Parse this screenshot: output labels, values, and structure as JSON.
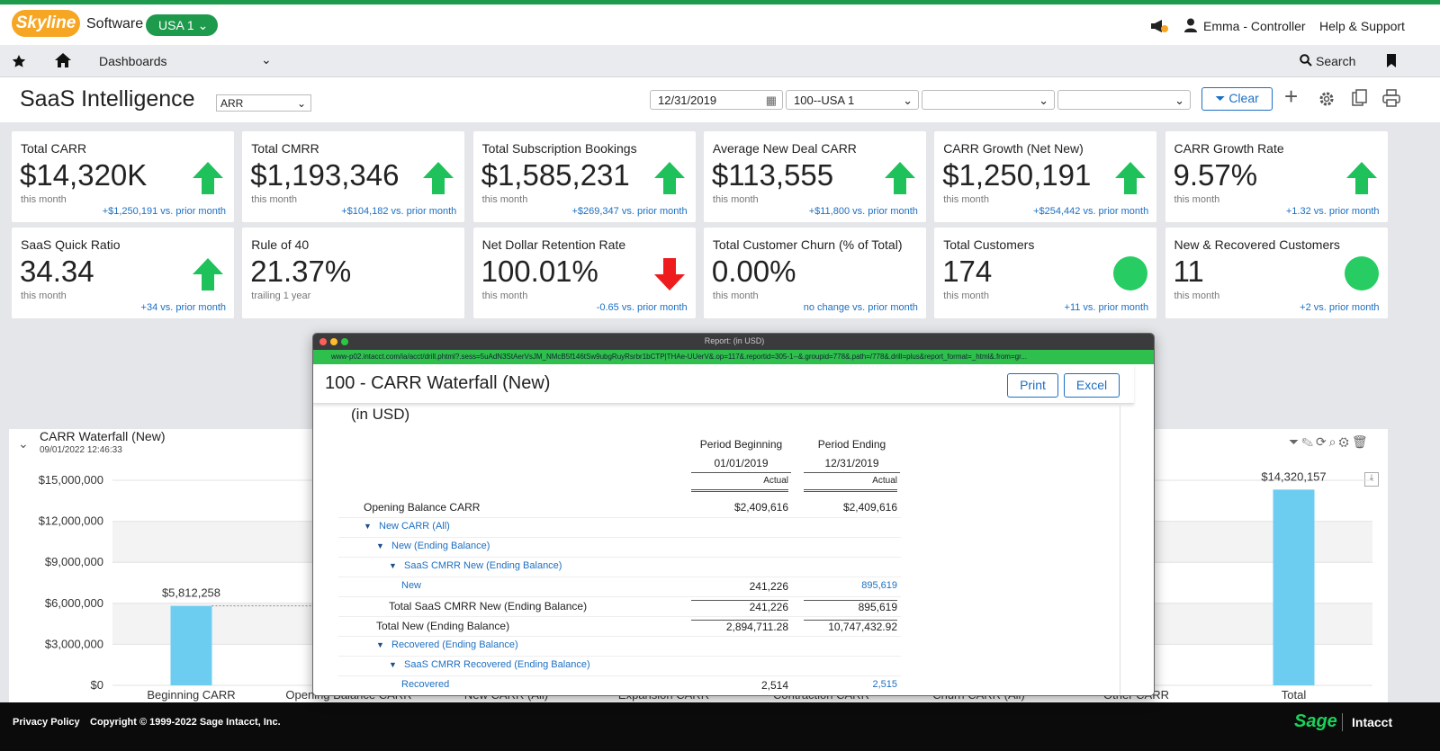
{
  "header": {
    "logo": "Skyline",
    "brand": "Software",
    "entity": "USA 1",
    "user": "Emma - Controller",
    "help": "Help & Support"
  },
  "nav": {
    "dashboards": "Dashboards",
    "search": "Search"
  },
  "toolbar": {
    "title": "SaaS Intelligence",
    "view": "ARR",
    "date": "12/31/2019",
    "location": "100--USA 1",
    "clear": "Clear"
  },
  "kpis": [
    {
      "label": "Total CARR",
      "value": "$14,320K",
      "period": "this month",
      "delta": "+$1,250,191 vs. prior month",
      "trend": "up"
    },
    {
      "label": "Total CMRR",
      "value": "$1,193,346",
      "period": "this month",
      "delta": "+$104,182 vs. prior month",
      "trend": "up"
    },
    {
      "label": "Total Subscription Bookings",
      "value": "$1,585,231",
      "period": "this month",
      "delta": "+$269,347 vs. prior month",
      "trend": "up"
    },
    {
      "label": "Average New Deal CARR",
      "value": "$113,555",
      "period": "this month",
      "delta": "+$11,800 vs. prior month",
      "trend": "up"
    },
    {
      "label": "CARR Growth (Net New)",
      "value": "$1,250,191",
      "period": "this month",
      "delta": "+$254,442 vs. prior month",
      "trend": "up"
    },
    {
      "label": "CARR Growth Rate",
      "value": "9.57%",
      "period": "this month",
      "delta": "+1.32 vs. prior month",
      "trend": "up"
    },
    {
      "label": "SaaS Quick Ratio",
      "value": "34.34",
      "period": "this month",
      "delta": "+34 vs. prior month",
      "trend": "up"
    },
    {
      "label": "Rule of 40",
      "value": "21.37%",
      "period": "trailing 1 year"
    },
    {
      "label": "Net Dollar Retention Rate",
      "value": "100.01%",
      "period": "this month",
      "delta": "-0.65 vs. prior month",
      "trend": "down"
    },
    {
      "label": "Total Customer Churn (% of Total)",
      "value": "0.00%",
      "period": "this month",
      "delta": "no change vs. prior month"
    },
    {
      "label": "Total Customers",
      "value": "174",
      "period": "this month",
      "delta": "+11 vs. prior month",
      "trend": "dot"
    },
    {
      "label": "New & Recovered Customers",
      "value": "11",
      "period": "this month",
      "delta": "+2 vs. prior month",
      "trend": "dot"
    }
  ],
  "waterfall": {
    "title": "CARR Waterfall (New)",
    "timestamp": "09/01/2022 12:46:33",
    "categories": [
      "Beginning CARR",
      "Opening Balance CARR",
      "New CARR (All)",
      "Expansion CARR",
      "Contraction CARR",
      "Churn CARR (All)",
      "Other CARR",
      "Total"
    ],
    "values": [
      5812258,
      null,
      null,
      null,
      null,
      null,
      null,
      14320157
    ],
    "value_labels": [
      "$5,812,258",
      null,
      null,
      null,
      null,
      null,
      null,
      "$14,320,157"
    ],
    "color": "#6dcdf1",
    "ylim": [
      0,
      15000000
    ],
    "yticks": [
      {
        "value": 0,
        "label": "$0"
      },
      {
        "value": 3000000,
        "label": "$3,000,000"
      },
      {
        "value": 6000000,
        "label": "$6,000,000"
      },
      {
        "value": 9000000,
        "label": "$9,000,000"
      },
      {
        "value": 12000000,
        "label": "$12,000,000"
      },
      {
        "value": 15000000,
        "label": "$15,000,000"
      }
    ]
  },
  "report": {
    "window_title": "Report: (in USD)",
    "url": "www-p02.intacct.com/ia/acct/drill.phtml?.sess=5uAdN3StAerVsJM_NMcB5f146tSw9ubgRuyRsrbr1bCTP|THAe-UUerV&.op=117&.reportid=305-1--&.groupid=778&.path=/778&.drill=plus&report_format=_html&.from=gr...",
    "title": "100 - CARR Waterfall (New)",
    "print": "Print",
    "excel": "Excel",
    "currency": "(in USD)",
    "columns": [
      {
        "header": "Period Beginning",
        "date": "01/01/2019",
        "basis": "Actual"
      },
      {
        "header": "Period Ending",
        "date": "12/31/2019",
        "basis": "Actual"
      }
    ],
    "rows": [
      {
        "label": "Opening Balance CARR",
        "level": 1,
        "values": [
          "$2,409,616",
          "$2,409,616"
        ]
      },
      {
        "label": "New CARR (All)",
        "level": 1,
        "expandable": true
      },
      {
        "label": "New (Ending Balance)",
        "level": 2,
        "expandable": true
      },
      {
        "label": "SaaS CMRR New (Ending Balance)",
        "level": 3,
        "expandable": true
      },
      {
        "label": "New",
        "level": 4,
        "link": true,
        "values": [
          "241,226",
          "895,619"
        ]
      },
      {
        "label": "Total SaaS CMRR New (Ending Balance)",
        "level": 3,
        "total": true,
        "values": [
          "241,226",
          "895,619"
        ]
      },
      {
        "label": "Total New (Ending Balance)",
        "level": 2,
        "total": true,
        "values": [
          "2,894,711.28",
          "10,747,432.92"
        ]
      },
      {
        "label": "Recovered (Ending Balance)",
        "level": 2,
        "expandable": true
      },
      {
        "label": "SaaS CMRR Recovered (Ending Balance)",
        "level": 3,
        "expandable": true
      },
      {
        "label": "Recovered",
        "level": 4,
        "link": true,
        "values": [
          "2,514",
          "2,515"
        ]
      }
    ]
  },
  "footer": {
    "privacy": "Privacy Policy",
    "copyright": "Copyright © 1999-2022 Sage Intacct, Inc.",
    "sage": "Sage",
    "intacct": "Intacct"
  }
}
